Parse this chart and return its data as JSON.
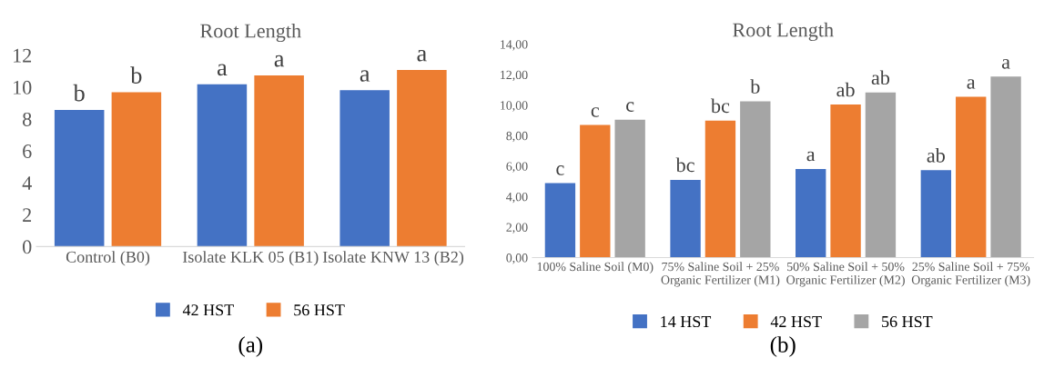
{
  "chart_data": [
    {
      "type": "bar",
      "title": "Root Length",
      "categories": [
        "Control (B0)",
        "Isolate KLK 05 (B1)",
        "Isolate KNW 13 (B2)"
      ],
      "series": [
        {
          "name": "42 HST",
          "color": "#4472c4",
          "values": [
            8.57,
            10.18,
            9.8
          ],
          "value_labels": [
            "b",
            "a",
            "a"
          ]
        },
        {
          "name": "56 HST",
          "color": "#ed7d31",
          "values": [
            9.68,
            10.73,
            11.07
          ],
          "value_labels": [
            "b",
            "a",
            "a"
          ]
        }
      ],
      "ylim": [
        0,
        12
      ],
      "yticks": [
        0,
        2,
        4,
        6,
        8,
        10,
        12
      ],
      "grid": false,
      "legend": "bottom",
      "annotations": [
        "(a)"
      ]
    },
    {
      "type": "bar",
      "title": "Root Length",
      "categories": [
        "100% Saline Soil (M0)",
        "75% Saline Soil + 25%\nOrganic Fertilizer (M1)",
        "50% Saline Soil + 50%\nOrganic Fertilizer (M2)",
        "25% Saline Soil + 75%\nOrganic Fertilizer (M3)"
      ],
      "series": [
        {
          "name": "14 HST",
          "color": "#4472c4",
          "values": [
            4.89,
            5.1,
            5.81,
            5.73
          ],
          "value_labels": [
            "c",
            "bc",
            "a",
            "ab"
          ]
        },
        {
          "name": "42 HST",
          "color": "#ed7d31",
          "values": [
            8.7,
            8.98,
            10.04,
            10.55
          ],
          "value_labels": [
            "c",
            "bc",
            "ab",
            "a"
          ]
        },
        {
          "name": "56 HST",
          "color": "#a5a5a5",
          "values": [
            9.05,
            10.25,
            10.83,
            11.87
          ],
          "value_labels": [
            "c",
            "b",
            "ab",
            "a"
          ]
        }
      ],
      "ylim": [
        0,
        14
      ],
      "yticks": [
        {
          "value": 0,
          "label": "0,00"
        },
        {
          "value": 2,
          "label": "2,00"
        },
        {
          "value": 4,
          "label": "4,00"
        },
        {
          "value": 6,
          "label": "6,00"
        },
        {
          "value": 8,
          "label": "8,00"
        },
        {
          "value": 10,
          "label": "10,00"
        },
        {
          "value": 12,
          "label": "12,00"
        },
        {
          "value": 14,
          "label": "14,00"
        }
      ],
      "grid": false,
      "legend": "bottom",
      "annotations": [
        "(b)"
      ]
    }
  ]
}
